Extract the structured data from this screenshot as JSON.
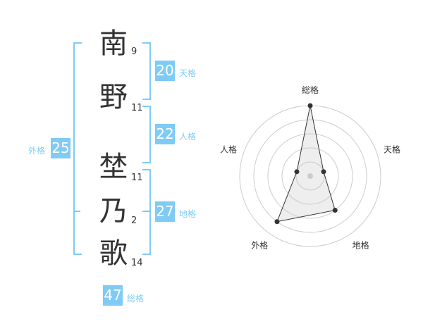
{
  "name": [
    {
      "char": "南",
      "strokes": "9"
    },
    {
      "char": "野",
      "strokes": "11"
    },
    {
      "char": "埜",
      "strokes": "11"
    },
    {
      "char": "乃",
      "strokes": "2"
    },
    {
      "char": "歌",
      "strokes": "14"
    }
  ],
  "fortunes": {
    "tenkaku": {
      "label": "天格",
      "value": "20"
    },
    "jinkaku": {
      "label": "人格",
      "value": "22"
    },
    "chikaku": {
      "label": "地格",
      "value": "27"
    },
    "gaikaku": {
      "label": "外格",
      "value": "25"
    },
    "soukaku": {
      "label": "総格",
      "value": "47"
    }
  },
  "colors": {
    "accent": "#7fcbf5",
    "text": "#333333"
  },
  "chart_data": {
    "type": "radar",
    "axes": [
      "総格",
      "天格",
      "地格",
      "外格",
      "人格"
    ],
    "values": [
      5,
      1,
      3,
      4,
      1
    ],
    "range": [
      0,
      5
    ],
    "rings": 5
  }
}
